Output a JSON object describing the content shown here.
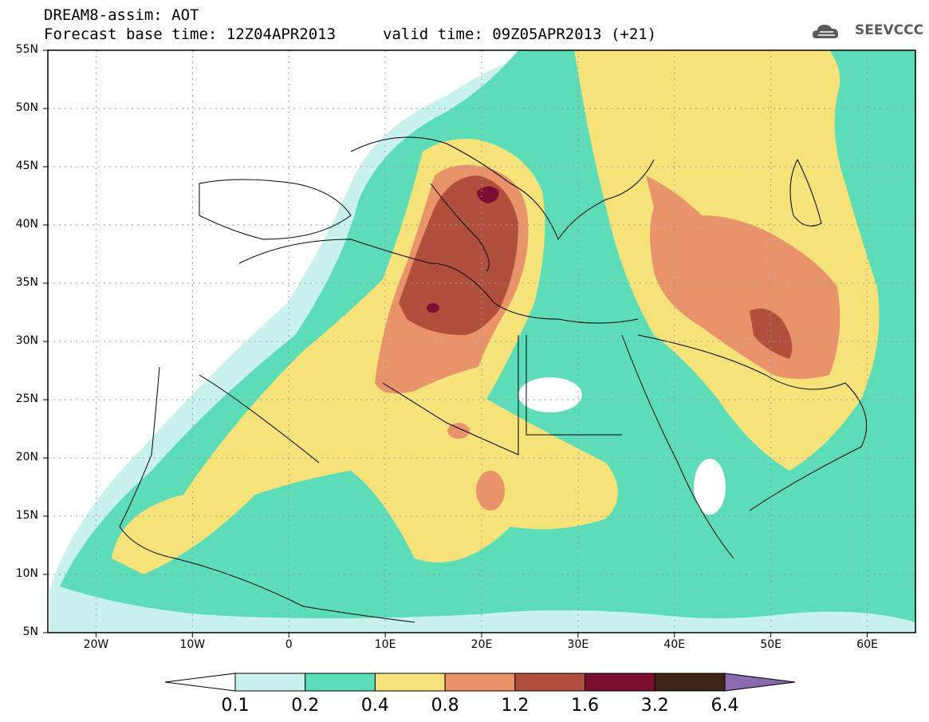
{
  "title": {
    "line1": "DREAM8-assim: AOT",
    "line2": "Forecast base time: 12Z04APR2013",
    "valid": "valid time: 09Z05APR2013 (+21)"
  },
  "logo": {
    "text": "SEEVCCC",
    "icon": "cloud-icon",
    "color": "#5a5a5a"
  },
  "map": {
    "projection": "lat-lon",
    "lon_range": [
      -25,
      65
    ],
    "lat_range": [
      5,
      55
    ],
    "grid": true,
    "lat_labels": [
      "55N",
      "50N",
      "45N",
      "40N",
      "35N",
      "30N",
      "25N",
      "20N",
      "15N",
      "10N",
      "5N"
    ],
    "lon_labels": [
      "20W",
      "10W",
      "0",
      "10E",
      "20E",
      "30E",
      "40E",
      "50E",
      "60E"
    ]
  },
  "colorbar": {
    "labels": [
      "0.1",
      "0.2",
      "0.4",
      "0.8",
      "1.2",
      "1.6",
      "3.2",
      "6.4"
    ],
    "colors": [
      "#ffffff",
      "#c9f2ec",
      "#5ddcb8",
      "#f5e37a",
      "#e8936a",
      "#b0503c",
      "#7a0f32",
      "#3e2417",
      "#8c6ab0"
    ]
  }
}
